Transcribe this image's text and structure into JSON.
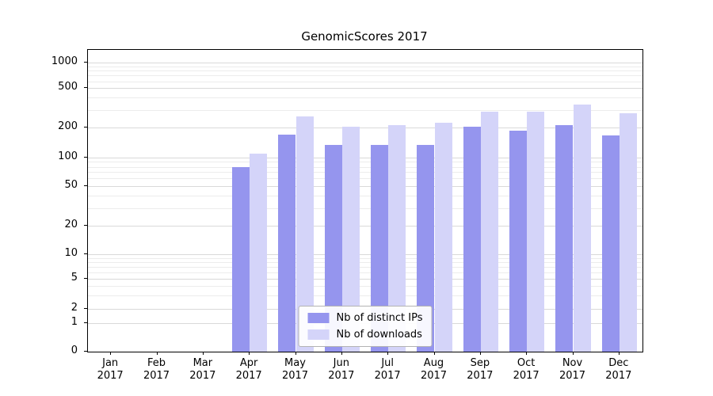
{
  "title": "GenomicScores 2017",
  "chart_data": {
    "type": "bar",
    "title": "GenomicScores 2017",
    "xlabel": "",
    "ylabel": "",
    "scale": "log-like",
    "grid": true,
    "legend_position": "lower-center-inside",
    "categories": [
      "Jan 2017",
      "Feb 2017",
      "Mar 2017",
      "Apr 2017",
      "May 2017",
      "Jun 2017",
      "Jul 2017",
      "Aug 2017",
      "Sep 2017",
      "Oct 2017",
      "Nov 2017",
      "Dec 2017"
    ],
    "y_ticks": [
      0,
      1,
      2,
      5,
      10,
      20,
      50,
      100,
      200,
      500,
      1000
    ],
    "ylim": [
      0,
      1400
    ],
    "series": [
      {
        "name": "Nb of distinct IPs",
        "color": "#9595ee",
        "values": [
          0,
          0,
          0,
          80,
          170,
          135,
          135,
          135,
          205,
          185,
          210,
          165
        ]
      },
      {
        "name": "Nb of downloads",
        "color": "#d4d4f9",
        "values": [
          0,
          0,
          0,
          110,
          260,
          205,
          210,
          225,
          290,
          290,
          340,
          280
        ]
      }
    ]
  }
}
